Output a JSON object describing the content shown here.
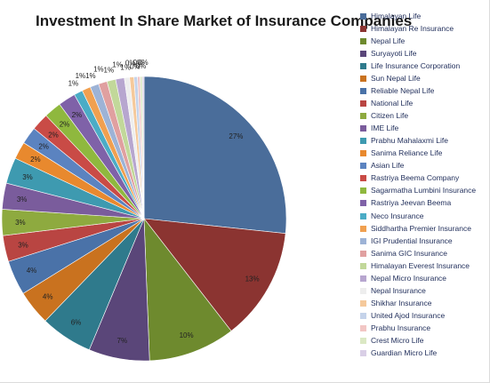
{
  "chart_data": {
    "type": "pie",
    "title": "Investment In Share Market of Insurance Companies",
    "slices": [
      {
        "name": "Himalayan Life",
        "value": 27,
        "label": "27%",
        "color": "#4a6d9a"
      },
      {
        "name": "Himalayan Re Insurance",
        "value": 13,
        "label": "13%",
        "color": "#8b3431"
      },
      {
        "name": "Nepal Life",
        "value": 10,
        "label": "10%",
        "color": "#6e8a2e"
      },
      {
        "name": "Suryayoti Life",
        "value": 7,
        "label": "7%",
        "color": "#5a4679"
      },
      {
        "name": "Life Insurance Corporation",
        "value": 6,
        "label": "6%",
        "color": "#2f7a8c"
      },
      {
        "name": "Sun Nepal Life",
        "value": 4,
        "label": "4%",
        "color": "#c9721f"
      },
      {
        "name": "Reliable Nepal Life",
        "value": 4,
        "label": "4%",
        "color": "#4a72a8"
      },
      {
        "name": "National Life",
        "value": 3,
        "label": "3%",
        "color": "#b94542"
      },
      {
        "name": "Citizen Life",
        "value": 3,
        "label": "3%",
        "color": "#8eaa3f"
      },
      {
        "name": "IME Life",
        "value": 3,
        "label": "3%",
        "color": "#7a5c9c"
      },
      {
        "name": "Prabhu Mahalaxmi Life",
        "value": 3,
        "label": "3%",
        "color": "#3e9ab0"
      },
      {
        "name": "Sanima Reliance Life",
        "value": 2,
        "label": "2%",
        "color": "#e8892e"
      },
      {
        "name": "Asian Life",
        "value": 2,
        "label": "2%",
        "color": "#5b83c0"
      },
      {
        "name": "Rastriya Beema Company",
        "value": 2,
        "label": "2%",
        "color": "#c94b46"
      },
      {
        "name": "Sagarmatha Lumbini Insurance",
        "value": 2,
        "label": "2%",
        "color": "#8fb83e"
      },
      {
        "name": "Rastriya Jeevan Beema",
        "value": 2,
        "label": "2%",
        "color": "#7f62a8"
      },
      {
        "name": "Neco Insurance",
        "value": 1,
        "label": "1%",
        "color": "#4bacc6"
      },
      {
        "name": "Siddhartha Premier Insurance",
        "value": 1,
        "label": "1%",
        "color": "#f0a050"
      },
      {
        "name": "IGI Prudential Insurance",
        "value": 1,
        "label": "1%",
        "color": "#9db3d6"
      },
      {
        "name": "Sanima GIC Insurance",
        "value": 1,
        "label": "1%",
        "color": "#e0a0a0"
      },
      {
        "name": "Himalayan Everest Insurance",
        "value": 1,
        "label": "1%",
        "color": "#c2d89a"
      },
      {
        "name": "Nepal Micro Insurance",
        "value": 1,
        "label": "1%",
        "color": "#b7a6cf"
      },
      {
        "name": "Nepal Insurance",
        "value": 0.6,
        "label": "1%",
        "color": "#eeeeee"
      },
      {
        "name": "Shikhar Insurance",
        "value": 0.5,
        "label": "0%",
        "color": "#f5c99b"
      },
      {
        "name": "United Ajod Insurance",
        "value": 0.4,
        "label": "0%",
        "color": "#c5d3ea"
      },
      {
        "name": "Prabhu Insurance",
        "value": 0.3,
        "label": "0%",
        "color": "#f2c6c4"
      },
      {
        "name": "Crest Micro Life",
        "value": 0.25,
        "label": "0%",
        "color": "#dbe8c4"
      },
      {
        "name": "Guardian Micro Life",
        "value": 0.2,
        "label": "0%",
        "color": "#d9cfe6"
      }
    ]
  },
  "legend": {
    "placement": "right"
  }
}
